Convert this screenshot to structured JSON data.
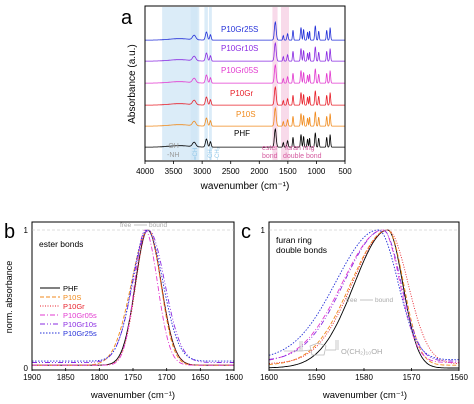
{
  "colors": {
    "PHF": "#000000",
    "P10S": "#f08a1c",
    "P10Gr": "#e8202a",
    "P10Gr05s": "#e23ad0",
    "P10Gr10s": "#8a2be2",
    "P10Gr25s": "#2430d8",
    "band_blue": "#cfe6f5",
    "band_pink": "#f6cde3"
  },
  "chart_data": [
    {
      "panel": "a",
      "type": "line",
      "xlabel": "wavenumber (cm⁻¹)",
      "ylabel": "Absorbance (a.u.)",
      "xlim": [
        4000,
        500
      ],
      "x_ticks": [
        4000,
        3500,
        3000,
        2500,
        2000,
        1500,
        1000,
        500
      ],
      "series_labels": [
        "PHF",
        "P10S",
        "P10Gr",
        "P10Gr05S",
        "P10Gr10S",
        "P10Gr25S"
      ],
      "band_labels": {
        "oh": "-OH",
        "nh": "-NH",
        "ch_a": "=CH",
        "ch_b": "-CH₂",
        "ch_c": "-CH₂",
        "ester": "ester",
        "bond": "bond",
        "furan_ring": "furan ring",
        "double_bond": "double bond"
      },
      "peaks_cm": [
        3140,
        2925,
        2855,
        1720,
        1580,
        1505,
        1410,
        1270,
        1225,
        1155,
        1120,
        1020,
        960,
        820,
        760
      ]
    },
    {
      "panel": "b",
      "type": "line",
      "title": "ester bonds",
      "xlabel": "wavenumber (cm⁻¹)",
      "ylabel": "norm. absorbance",
      "xlim": [
        1900,
        1600
      ],
      "ylim": [
        0,
        1
      ],
      "x_ticks": [
        1900,
        1850,
        1800,
        1750,
        1700,
        1650,
        1600
      ],
      "y_ticks": [
        0,
        1
      ],
      "annotation_free": "free",
      "annotation_bound": "bound",
      "series": [
        {
          "name": "PHF",
          "peak": 1728,
          "wl": 26,
          "wr": 28,
          "base": 0.02
        },
        {
          "name": "P10S",
          "peak": 1727,
          "wl": 36,
          "wr": 26,
          "base": 0.02
        },
        {
          "name": "P10Gr",
          "peak": 1728,
          "wl": 25,
          "wr": 28,
          "base": 0.02
        },
        {
          "name": "P10Gr05s",
          "peak": 1732,
          "wl": 22,
          "wr": 26,
          "base": 0.02
        },
        {
          "name": "P10Gr10s",
          "peak": 1727,
          "wl": 33,
          "wr": 34,
          "base": 0.04
        },
        {
          "name": "P10Gr25s",
          "peak": 1729,
          "wl": 31,
          "wr": 33,
          "base": 0.05
        }
      ]
    },
    {
      "panel": "c",
      "type": "line",
      "title": "furan ring",
      "subtitle": "double bonds",
      "xlabel": "wavenumber (cm⁻¹)",
      "xlim": [
        1600,
        1560
      ],
      "ylim": [
        0,
        1
      ],
      "x_ticks": [
        1600,
        1590,
        1580,
        1570,
        1560
      ],
      "y_ticks": [
        1
      ],
      "annotation_free": "free",
      "annotation_bound": "bound",
      "structure_label": "O(CH₂)₁₀OH",
      "series": [
        {
          "name": "PHF",
          "peak": 1575,
          "wl": 10,
          "wr": 4.5,
          "base": 0.0
        },
        {
          "name": "P10S",
          "peak": 1575,
          "wl": 11,
          "wr": 4.7,
          "base": 0.02
        },
        {
          "name": "P10Gr",
          "peak": 1575,
          "wl": 10.5,
          "wr": 6.0,
          "base": 0.03
        },
        {
          "name": "P10Gr05s",
          "peak": 1576,
          "wl": 12,
          "wr": 5.0,
          "base": 0.04
        },
        {
          "name": "P10Gr10s",
          "peak": 1576,
          "wl": 11.5,
          "wr": 5.3,
          "base": 0.05
        },
        {
          "name": "P10Gr25s",
          "peak": 1577,
          "wl": 12.5,
          "wr": 5.8,
          "base": 0.06
        }
      ]
    }
  ],
  "panel_letters": {
    "a": "a",
    "b": "b",
    "c": "c"
  }
}
